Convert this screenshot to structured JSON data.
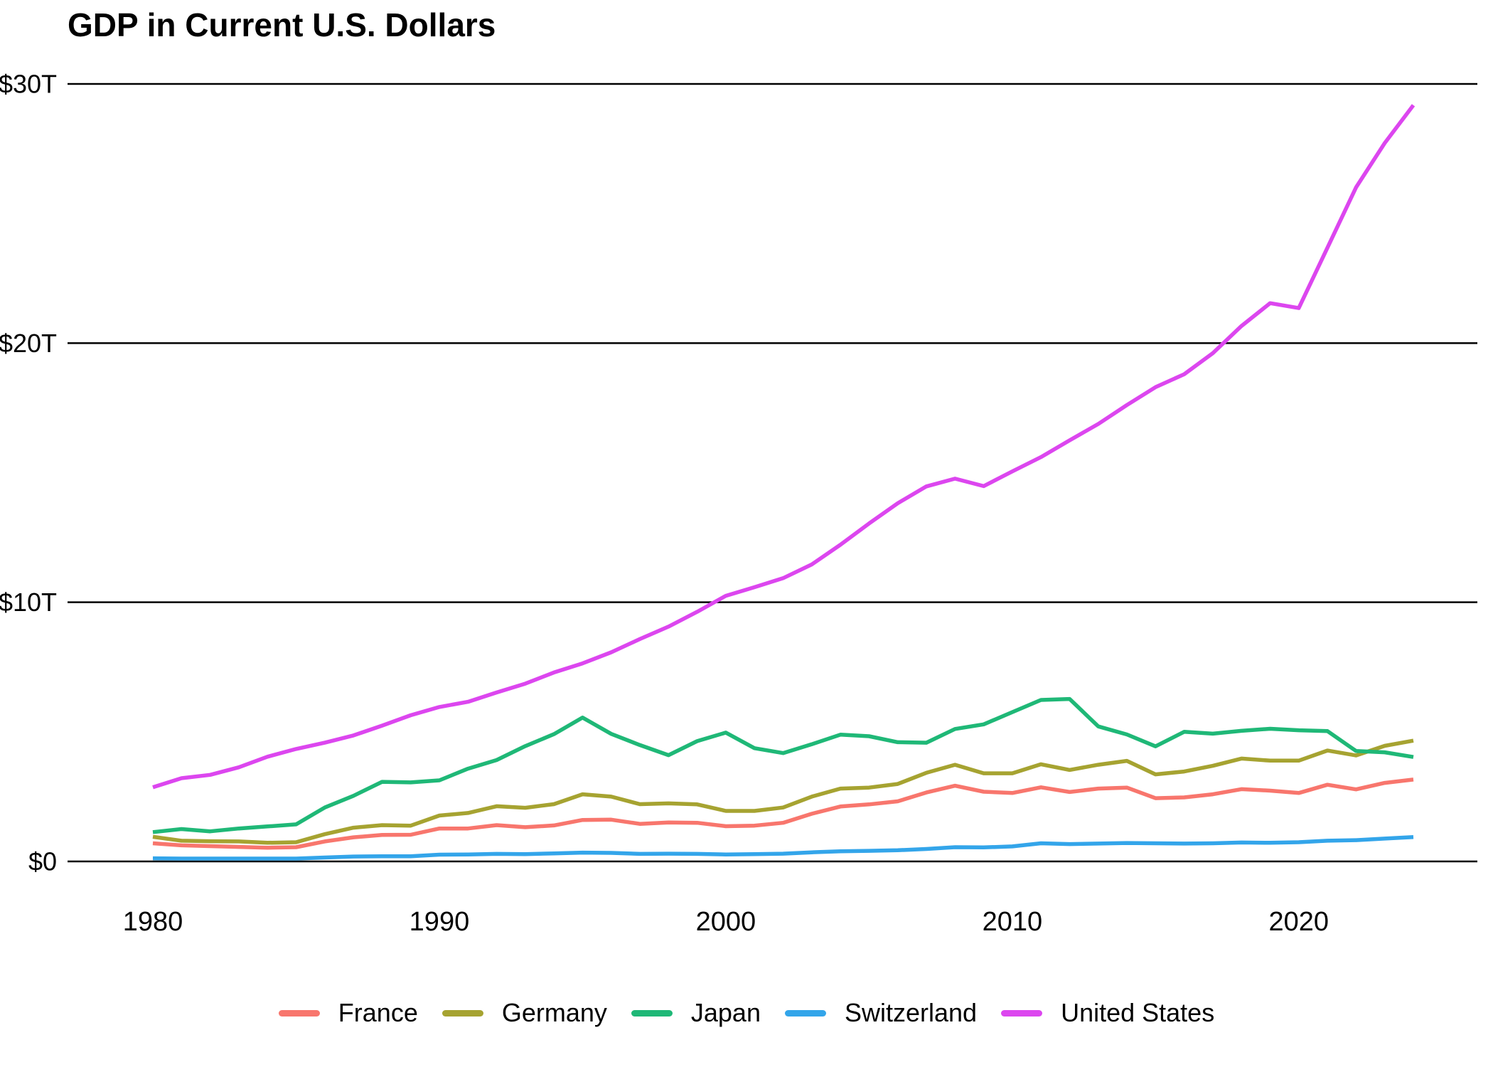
{
  "chart_data": {
    "type": "line",
    "title": "GDP in Current U.S. Dollars",
    "xlabel": "",
    "ylabel": "",
    "xlim": [
      1980,
      2024
    ],
    "ylim": [
      0,
      30
    ],
    "grid": "horizontal",
    "legend_position": "bottom",
    "x": [
      1980,
      1981,
      1982,
      1983,
      1984,
      1985,
      1986,
      1987,
      1988,
      1989,
      1990,
      1991,
      1992,
      1993,
      1994,
      1995,
      1996,
      1997,
      1998,
      1999,
      2000,
      2001,
      2002,
      2003,
      2004,
      2005,
      2006,
      2007,
      2008,
      2009,
      2010,
      2011,
      2012,
      2013,
      2014,
      2015,
      2016,
      2017,
      2018,
      2019,
      2020,
      2021,
      2022,
      2023,
      2024
    ],
    "x_ticks": [
      {
        "value": 1980,
        "label": "1980"
      },
      {
        "value": 1990,
        "label": "1990"
      },
      {
        "value": 2000,
        "label": "2000"
      },
      {
        "value": 2010,
        "label": "2010"
      },
      {
        "value": 2020,
        "label": "2020"
      }
    ],
    "y_ticks": [
      {
        "value": 0,
        "label": "$0"
      },
      {
        "value": 10,
        "label": "$10T"
      },
      {
        "value": 20,
        "label": "$20T"
      },
      {
        "value": 30,
        "label": "$30T"
      }
    ],
    "units": "trillions of U.S. dollars",
    "series": [
      {
        "name": "France",
        "color": "#F8766D",
        "values": [
          0.7,
          0.62,
          0.59,
          0.56,
          0.53,
          0.55,
          0.77,
          0.93,
          1.02,
          1.03,
          1.27,
          1.27,
          1.4,
          1.32,
          1.39,
          1.6,
          1.61,
          1.45,
          1.5,
          1.49,
          1.36,
          1.38,
          1.49,
          1.84,
          2.12,
          2.2,
          2.32,
          2.66,
          2.92,
          2.69,
          2.64,
          2.86,
          2.68,
          2.81,
          2.85,
          2.44,
          2.47,
          2.59,
          2.79,
          2.73,
          2.64,
          2.96,
          2.78,
          3.03,
          3.16
        ]
      },
      {
        "name": "Germany",
        "color": "#A6A331",
        "values": [
          0.95,
          0.8,
          0.78,
          0.77,
          0.72,
          0.74,
          1.05,
          1.3,
          1.4,
          1.38,
          1.77,
          1.87,
          2.13,
          2.07,
          2.21,
          2.59,
          2.5,
          2.21,
          2.24,
          2.2,
          1.95,
          1.95,
          2.08,
          2.5,
          2.81,
          2.85,
          2.99,
          3.42,
          3.73,
          3.4,
          3.4,
          3.75,
          3.53,
          3.73,
          3.88,
          3.36,
          3.47,
          3.69,
          3.97,
          3.89,
          3.89,
          4.28,
          4.09,
          4.46,
          4.66
        ]
      },
      {
        "name": "Japan",
        "color": "#1FB877",
        "values": [
          1.13,
          1.25,
          1.16,
          1.27,
          1.35,
          1.43,
          2.08,
          2.53,
          3.07,
          3.05,
          3.13,
          3.58,
          3.91,
          4.45,
          4.91,
          5.55,
          4.92,
          4.49,
          4.1,
          4.64,
          4.97,
          4.37,
          4.18,
          4.52,
          4.89,
          4.83,
          4.6,
          4.58,
          5.11,
          5.29,
          5.76,
          6.23,
          6.27,
          5.21,
          4.9,
          4.44,
          5.0,
          4.93,
          5.04,
          5.12,
          5.06,
          5.03,
          4.26,
          4.21,
          4.03
        ]
      },
      {
        "name": "Switzerland",
        "color": "#33A5EA",
        "values": [
          0.12,
          0.11,
          0.11,
          0.11,
          0.11,
          0.11,
          0.15,
          0.19,
          0.2,
          0.2,
          0.26,
          0.27,
          0.29,
          0.28,
          0.31,
          0.34,
          0.33,
          0.29,
          0.3,
          0.29,
          0.27,
          0.28,
          0.3,
          0.35,
          0.39,
          0.41,
          0.43,
          0.48,
          0.55,
          0.54,
          0.58,
          0.7,
          0.67,
          0.69,
          0.71,
          0.7,
          0.69,
          0.7,
          0.73,
          0.72,
          0.74,
          0.8,
          0.82,
          0.88,
          0.94
        ]
      },
      {
        "name": "United States",
        "color": "#DC46EF",
        "values": [
          2.86,
          3.21,
          3.34,
          3.63,
          4.04,
          4.34,
          4.58,
          4.86,
          5.24,
          5.64,
          5.96,
          6.16,
          6.52,
          6.86,
          7.29,
          7.64,
          8.07,
          8.58,
          9.06,
          9.63,
          10.25,
          10.58,
          10.93,
          11.46,
          12.22,
          13.04,
          13.82,
          14.47,
          14.77,
          14.48,
          15.05,
          15.6,
          16.25,
          16.88,
          17.61,
          18.3,
          18.8,
          19.61,
          20.66,
          21.54,
          21.35,
          23.68,
          26.01,
          27.72,
          29.18
        ]
      }
    ]
  }
}
